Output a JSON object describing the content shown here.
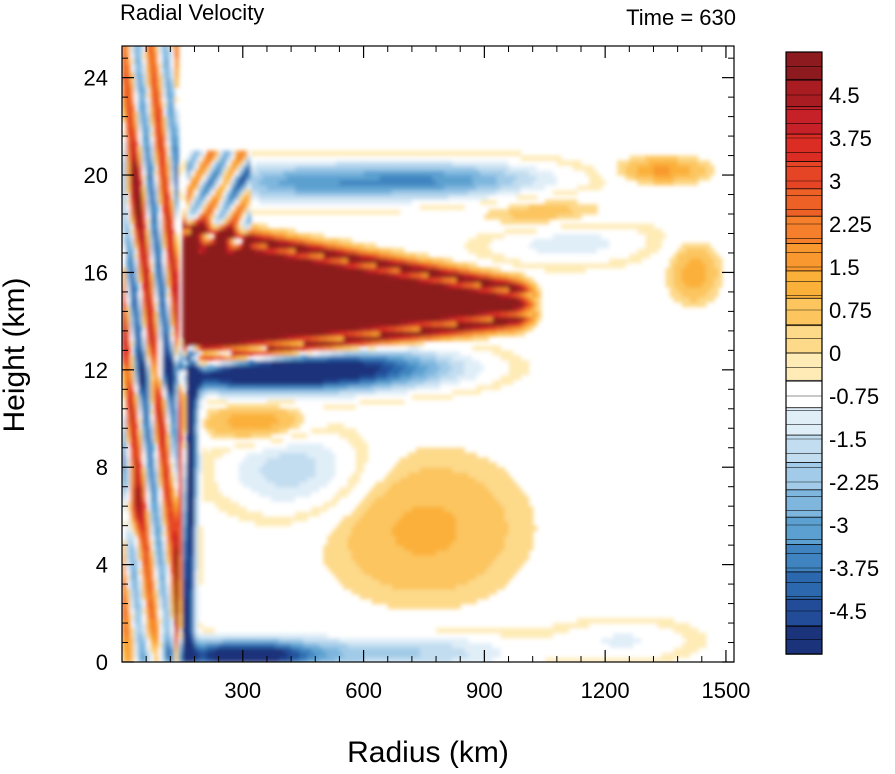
{
  "chart_data": {
    "type": "heatmap",
    "title": "Radial Velocity",
    "subtitle": "Time = 630",
    "xlabel": "Radius (km)",
    "ylabel": "Height (km)",
    "xlim": [
      0,
      1520
    ],
    "ylim": [
      0,
      25.3
    ],
    "x_ticks": [
      300,
      600,
      900,
      1200,
      1500
    ],
    "x_tick_labels": [
      "300",
      "600",
      "900",
      "1200",
      "1500"
    ],
    "y_ticks": [
      0,
      4,
      8,
      12,
      16,
      20,
      24
    ],
    "y_tick_labels": [
      "0",
      "4",
      "8",
      "12",
      "16",
      "20",
      "24"
    ],
    "colorbar": {
      "min": -5.25,
      "max": 5.25,
      "step": 0.25,
      "label_values": [
        4.5,
        3.75,
        3,
        2.25,
        1.5,
        0.75,
        0,
        -0.75,
        -1.5,
        -2.25,
        -3,
        -3.75,
        -4.5
      ],
      "labels": [
        "4.5",
        "3.75",
        "3",
        "2.25",
        "1.5",
        "0.75",
        "0",
        "-0.75",
        "-1.5",
        "-2.25",
        "-3",
        "-3.75",
        "-4.5"
      ],
      "colors_top_to_bottom": [
        "#8c1a1f",
        "#a81c22",
        "#c62028",
        "#db2d23",
        "#e64525",
        "#ee6126",
        "#f57f2a",
        "#f8982f",
        "#fbb03a",
        "#fcc55e",
        "#fdd98a",
        "#feebb6",
        "#ffffff",
        "#e0eef8",
        "#c2ddf0",
        "#a1cbe8",
        "#7eb6de",
        "#5ba0d0",
        "#3f84c0",
        "#2c68ad",
        "#224c97",
        "#1b337a"
      ]
    },
    "features": [
      {
        "name": "outflow-max",
        "value": 5.25,
        "r": [
          155,
          1010
        ],
        "z": [
          12.6,
          17.2
        ]
      },
      {
        "name": "inflow-below-outflow",
        "value": -4.9,
        "r": [
          165,
          820
        ],
        "z": [
          10.9,
          12.9
        ]
      },
      {
        "name": "eyewall-inflow-column",
        "value": -5.0,
        "r": [
          140,
          185
        ],
        "z": [
          0,
          12.5
        ]
      },
      {
        "name": "boundary-layer-inflow",
        "value": -4.8,
        "r": [
          150,
          500
        ],
        "z": [
          0,
          1.0
        ]
      },
      {
        "name": "upper-inflow-band",
        "value": -2.8,
        "r": [
          250,
          1000
        ],
        "z": [
          19.2,
          20.5
        ]
      },
      {
        "name": "upper-outflow-patch",
        "value": 1.3,
        "r": [
          1250,
          1400
        ],
        "z": [
          19.8,
          20.8
        ]
      }
    ]
  }
}
